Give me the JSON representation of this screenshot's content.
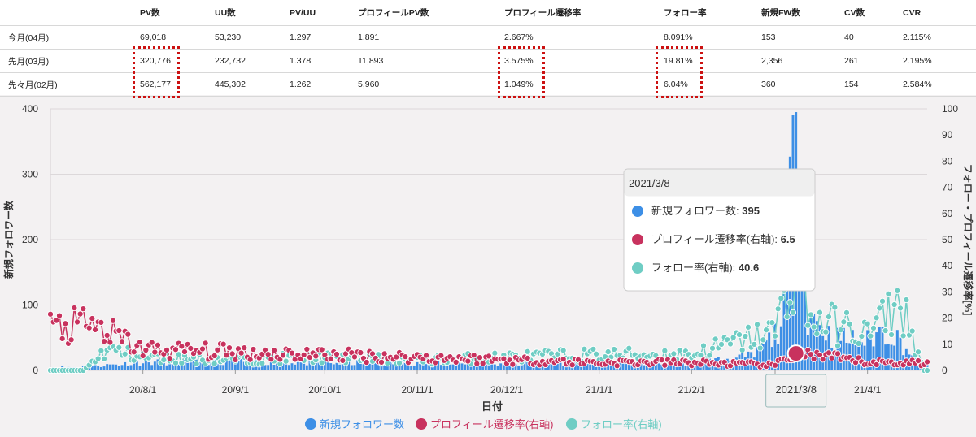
{
  "table": {
    "headers": [
      "",
      "PV数",
      "UU数",
      "PV/UU",
      "プロフィールPV数",
      "プロフィール遷移率",
      "フォロー率",
      "新規FW数",
      "CV数",
      "CVR"
    ],
    "rows": [
      {
        "label": "今月(04月)",
        "cells": [
          "69,018",
          "53,230",
          "1.297",
          "1,891",
          "2.667%",
          "8.091%",
          "153",
          "40",
          "2.115%"
        ]
      },
      {
        "label": "先月(03月)",
        "cells": [
          "320,776",
          "232,732",
          "1.378",
          "11,893",
          "3.575%",
          "19.81%",
          "2,356",
          "261",
          "2.195%"
        ]
      },
      {
        "label": "先々月(02月)",
        "cells": [
          "562,177",
          "445,302",
          "1.262",
          "5,960",
          "1.049%",
          "6.04%",
          "360",
          "154",
          "2.584%"
        ]
      }
    ]
  },
  "chart_data": {
    "type": "bar",
    "xlabel": "日付",
    "ylabel": "新規フォロワー数",
    "y2label": "フォロー・プロフィール遷移率[%]",
    "ylim": [
      0,
      400
    ],
    "y2lim": [
      0,
      100
    ],
    "yticks": [
      0,
      100,
      200,
      300,
      400
    ],
    "y2ticks": [
      0,
      10,
      20,
      30,
      40,
      50,
      60,
      70,
      80,
      90,
      100
    ],
    "xlim": [
      "2020-07-01",
      "2021-04-21"
    ],
    "xticks": [
      {
        "date": "2020-08-01",
        "label": "20/8/1"
      },
      {
        "date": "2020-09-01",
        "label": "20/9/1"
      },
      {
        "date": "2020-10-01",
        "label": "20/10/1"
      },
      {
        "date": "2020-11-01",
        "label": "20/11/1"
      },
      {
        "date": "2020-12-01",
        "label": "20/12/1"
      },
      {
        "date": "2021-01-01",
        "label": "21/1/1"
      },
      {
        "date": "2021-02-01",
        "label": "21/2/1"
      },
      {
        "date": "2021-03-01",
        "label": "2"
      },
      {
        "date": "2021-04-01",
        "label": "21/4/1"
      }
    ],
    "hover_label": "2021/3/8",
    "series": [
      {
        "name": "新規フォロワー数",
        "axis": "left",
        "kind": "bar",
        "color": "#3d8fe6",
        "points": [
          [
            "2020-07-10",
            5
          ],
          [
            "2020-08-01",
            12
          ],
          [
            "2020-09-01",
            14
          ],
          [
            "2020-10-01",
            11
          ],
          [
            "2020-11-01",
            12
          ],
          [
            "2020-12-01",
            10
          ],
          [
            "2021-01-01",
            12
          ],
          [
            "2021-02-01",
            12
          ],
          [
            "2021-02-22",
            22
          ],
          [
            "2021-03-01",
            55
          ],
          [
            "2021-03-04",
            90
          ],
          [
            "2021-03-08",
            395
          ],
          [
            "2021-03-12",
            90
          ],
          [
            "2021-03-20",
            50
          ],
          [
            "2021-04-01",
            45
          ],
          [
            "2021-04-05",
            60
          ],
          [
            "2021-04-10",
            55
          ],
          [
            "2021-04-18",
            10
          ]
        ]
      },
      {
        "name": "プロフィール遷移率(右軸)",
        "axis": "right",
        "kind": "line",
        "color": "#c8325e",
        "points": [
          [
            "2020-07-01",
            16
          ],
          [
            "2020-07-15",
            17
          ],
          [
            "2020-08-01",
            8
          ],
          [
            "2020-09-01",
            7
          ],
          [
            "2020-10-01",
            6
          ],
          [
            "2020-11-01",
            5
          ],
          [
            "2020-12-01",
            4
          ],
          [
            "2021-01-01",
            3
          ],
          [
            "2021-02-01",
            3
          ],
          [
            "2021-03-01",
            2
          ],
          [
            "2021-03-08",
            6.5
          ],
          [
            "2021-04-01",
            3
          ],
          [
            "2021-04-20",
            3
          ]
        ]
      },
      {
        "name": "フォロー率(右軸)",
        "axis": "right",
        "kind": "line",
        "color": "#6fcdc4",
        "points": [
          [
            "2020-07-01",
            0
          ],
          [
            "2020-07-12",
            0
          ],
          [
            "2020-07-20",
            8
          ],
          [
            "2020-08-01",
            5
          ],
          [
            "2020-09-01",
            4
          ],
          [
            "2020-10-01",
            5
          ],
          [
            "2020-11-01",
            4
          ],
          [
            "2020-12-01",
            5
          ],
          [
            "2021-01-01",
            6
          ],
          [
            "2021-02-01",
            6
          ],
          [
            "2021-03-01",
            15
          ],
          [
            "2021-03-08",
            40.6
          ],
          [
            "2021-03-12",
            20
          ],
          [
            "2021-04-01",
            14
          ],
          [
            "2021-04-12",
            26
          ],
          [
            "2021-04-20",
            0
          ]
        ]
      }
    ],
    "tooltip": {
      "title": "2021/3/8",
      "items": [
        {
          "label": "新規フォロワー数:",
          "value": "395"
        },
        {
          "label": "プロフィール遷移率(右軸):",
          "value": "6.5"
        },
        {
          "label": "フォロー率(右軸):",
          "value": "40.6"
        }
      ]
    },
    "legend": [
      "新規フォロワー数",
      "プロフィール遷移率(右軸)",
      "フォロー率(右軸)"
    ],
    "legend_position": "bottom"
  }
}
